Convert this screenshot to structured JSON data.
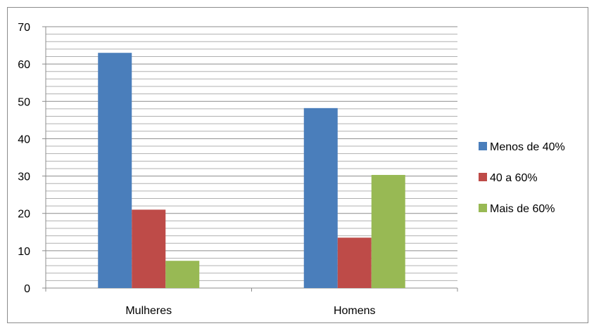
{
  "chart_data": {
    "type": "bar",
    "categories": [
      "Mulheres",
      "Homens"
    ],
    "series": [
      {
        "name": "Menos de 40%",
        "color": "#4a7ebb",
        "values": [
          63,
          48.2
        ]
      },
      {
        "name": "40 a 60%",
        "color": "#be4b48",
        "values": [
          21,
          13.5
        ]
      },
      {
        "name": "Mais de 60%",
        "color": "#98b954",
        "values": [
          7.3,
          30.3
        ]
      }
    ],
    "title": "",
    "xlabel": "",
    "ylabel": "",
    "ylim": [
      0,
      70
    ],
    "yticks": [
      0,
      10,
      20,
      30,
      40,
      50,
      60,
      70
    ],
    "grid": "horizontal-minor",
    "legend_position": "right"
  }
}
